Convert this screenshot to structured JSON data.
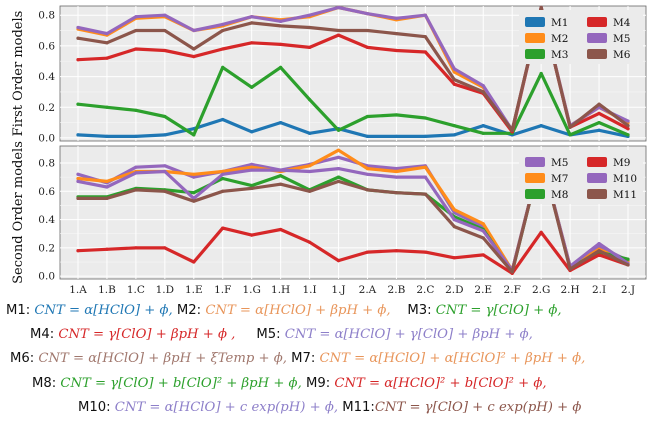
{
  "colors": {
    "M1": "#1f77b4",
    "M2": "#ff8c1a",
    "M3": "#2ca02c",
    "M4": "#d62728",
    "M5": "#9467bd",
    "M6": "#8c564b",
    "M7": "#ff8c1a",
    "M8": "#2ca02c",
    "M9": "#d62728",
    "M10": "#9467bd",
    "M11": "#8c564b"
  },
  "chart_data": [
    {
      "type": "line",
      "ylabel": "First Order models",
      "xlabel": "",
      "ylim": [
        -0.02,
        0.86
      ],
      "yticks": [
        0.0,
        0.2,
        0.4,
        0.6,
        0.8
      ],
      "grid": true,
      "legend_position": "top-right",
      "categories": [
        "1.A",
        "1.B",
        "1.C",
        "1.D",
        "1.E",
        "1.F",
        "1.G",
        "1.H",
        "1.I",
        "1.J",
        "2.A",
        "2.B",
        "2.C",
        "2.D",
        "2.E",
        "2.F",
        "2.G",
        "2.H",
        "2.I",
        "2.J"
      ],
      "series": [
        {
          "name": "M1",
          "values": [
            0.02,
            0.01,
            0.01,
            0.02,
            0.06,
            0.12,
            0.04,
            0.1,
            0.03,
            0.06,
            0.01,
            0.01,
            0.01,
            0.02,
            0.08,
            0.02,
            0.08,
            0.02,
            0.05,
            0.01
          ]
        },
        {
          "name": "M2",
          "values": [
            0.71,
            0.67,
            0.78,
            0.79,
            0.7,
            0.73,
            0.79,
            0.77,
            0.79,
            0.85,
            0.81,
            0.77,
            0.8,
            0.43,
            0.33,
            0.05,
            0.85,
            0.08,
            0.2,
            0.1
          ]
        },
        {
          "name": "M3",
          "values": [
            0.22,
            0.2,
            0.18,
            0.14,
            0.02,
            0.46,
            0.33,
            0.46,
            0.25,
            0.05,
            0.14,
            0.15,
            0.13,
            0.08,
            0.03,
            0.03,
            0.42,
            0.02,
            0.1,
            0.02
          ]
        },
        {
          "name": "M4",
          "values": [
            0.51,
            0.52,
            0.58,
            0.57,
            0.53,
            0.58,
            0.62,
            0.61,
            0.59,
            0.67,
            0.59,
            0.57,
            0.56,
            0.35,
            0.29,
            0.04,
            0.85,
            0.07,
            0.16,
            0.06
          ]
        },
        {
          "name": "M5",
          "values": [
            0.72,
            0.68,
            0.79,
            0.8,
            0.7,
            0.74,
            0.79,
            0.76,
            0.8,
            0.85,
            0.81,
            0.78,
            0.8,
            0.45,
            0.34,
            0.05,
            0.85,
            0.08,
            0.2,
            0.11
          ]
        },
        {
          "name": "M6",
          "values": [
            0.65,
            0.62,
            0.7,
            0.7,
            0.58,
            0.7,
            0.75,
            0.73,
            0.72,
            0.7,
            0.7,
            0.68,
            0.66,
            0.38,
            0.3,
            0.05,
            0.85,
            0.07,
            0.22,
            0.08
          ]
        }
      ]
    },
    {
      "type": "line",
      "ylabel": "Second Order models",
      "xlabel": "",
      "ylim": [
        -0.02,
        0.92
      ],
      "yticks": [
        0.0,
        0.2,
        0.4,
        0.6,
        0.8
      ],
      "grid": true,
      "legend_position": "top-right",
      "categories": [
        "1.A",
        "1.B",
        "1.C",
        "1.D",
        "1.E",
        "1.F",
        "1.G",
        "1.H",
        "1.I",
        "1.J",
        "2.A",
        "2.B",
        "2.C",
        "2.D",
        "2.E",
        "2.F",
        "2.G",
        "2.H",
        "2.I",
        "2.J"
      ],
      "series": [
        {
          "name": "M5",
          "values": [
            0.72,
            0.66,
            0.77,
            0.78,
            0.7,
            0.74,
            0.79,
            0.75,
            0.79,
            0.84,
            0.78,
            0.76,
            0.78,
            0.45,
            0.35,
            0.04,
            0.85,
            0.06,
            0.21,
            0.11
          ]
        },
        {
          "name": "M7",
          "values": [
            0.69,
            0.67,
            0.74,
            0.74,
            0.72,
            0.74,
            0.77,
            0.74,
            0.78,
            0.89,
            0.76,
            0.74,
            0.77,
            0.47,
            0.37,
            0.04,
            0.85,
            0.07,
            0.19,
            0.1
          ]
        },
        {
          "name": "M8",
          "values": [
            0.56,
            0.56,
            0.62,
            0.61,
            0.59,
            0.69,
            0.64,
            0.71,
            0.61,
            0.7,
            0.61,
            0.59,
            0.58,
            0.42,
            0.33,
            0.03,
            0.85,
            0.06,
            0.17,
            0.12
          ]
        },
        {
          "name": "M9",
          "values": [
            0.18,
            0.19,
            0.2,
            0.2,
            0.1,
            0.34,
            0.29,
            0.33,
            0.24,
            0.11,
            0.17,
            0.18,
            0.17,
            0.13,
            0.15,
            0.02,
            0.31,
            0.04,
            0.15,
            0.08
          ]
        },
        {
          "name": "M10",
          "values": [
            0.67,
            0.63,
            0.73,
            0.74,
            0.55,
            0.72,
            0.75,
            0.75,
            0.74,
            0.76,
            0.72,
            0.7,
            0.7,
            0.4,
            0.32,
            0.04,
            0.85,
            0.07,
            0.23,
            0.09
          ]
        },
        {
          "name": "M11",
          "values": [
            0.55,
            0.55,
            0.61,
            0.6,
            0.53,
            0.6,
            0.62,
            0.65,
            0.6,
            0.67,
            0.61,
            0.59,
            0.58,
            0.35,
            0.27,
            0.03,
            0.85,
            0.05,
            0.18,
            0.08
          ]
        }
      ]
    }
  ],
  "equations": [
    [
      {
        "label": "M1: ",
        "formula": "CNT = α[HClO] + ϕ",
        "color": "#1f77b4",
        "sep": ", "
      },
      {
        "label": "M2: ",
        "formula": "CNT = α[HClO] + βpH + ϕ",
        "color": "#e8955a",
        "sep": ",    "
      },
      {
        "label": "M3: ",
        "formula": "CNT = γ[ClO] + ϕ",
        "color": "#2ca02c",
        "sep": ","
      }
    ],
    [
      {
        "label": "M4: ",
        "formula": "CNT = γ[ClO] + βpH + ϕ",
        "color": "#d62728",
        "sep": " ,     "
      },
      {
        "label": "M5: ",
        "formula": "CNT = α[HClO] + γ[ClO] + βpH + ϕ",
        "color": "#8d7fc9",
        "sep": ","
      }
    ],
    [
      {
        "label": "M6: ",
        "formula": "CNT = α[HClO] + βpH + ξTemp + ϕ",
        "color": "#a0776d",
        "sep": ", "
      },
      {
        "label": "M7: ",
        "formula": "CNT = α[HClO] + α[HClO]² + βpH + ϕ",
        "color": "#e8955a",
        "sep": ","
      }
    ],
    [
      {
        "label": "M8: ",
        "formula": "CNT = γ[ClO] + b[ClO]² + βpH + ϕ",
        "color": "#2ca02c",
        "sep": ", "
      },
      {
        "label": "M9: ",
        "formula": "CNT = α[HClO]² + b[ClO]² + ϕ",
        "color": "#d62728",
        "sep": ","
      }
    ],
    [
      {
        "label": "M10: ",
        "formula": "CNT = α[HClO] + c exp(pH) + ϕ",
        "color": "#8d7fc9",
        "sep": ", "
      },
      {
        "label": "M11:",
        "formula": "CNT = γ[ClO] + c exp(pH) + ϕ",
        "color": "#8c564b",
        "sep": ""
      }
    ]
  ]
}
